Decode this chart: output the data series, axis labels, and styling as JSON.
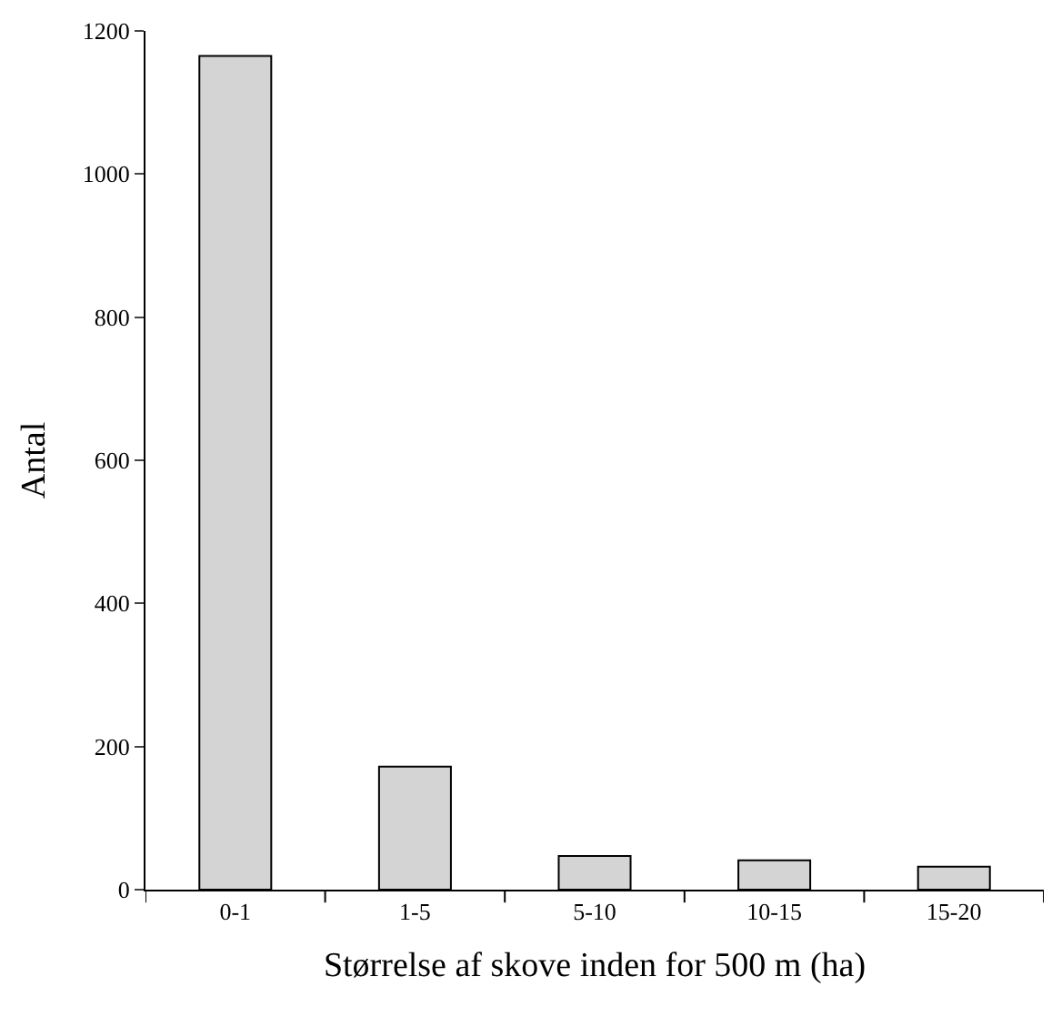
{
  "chart_data": {
    "type": "bar",
    "xlabel": "Størrelse af skove inden for 500 m (ha)",
    "ylabel": "Antal",
    "categories": [
      "0-1",
      "1-5",
      "5-10",
      "10-15",
      "15-20"
    ],
    "values": [
      1165,
      172,
      47,
      41,
      32
    ],
    "color": "#d4d4d4",
    "ylim": [
      0,
      1200
    ],
    "yticks": [
      0,
      200,
      400,
      600,
      800,
      1000,
      1200
    ],
    "legend": false
  }
}
